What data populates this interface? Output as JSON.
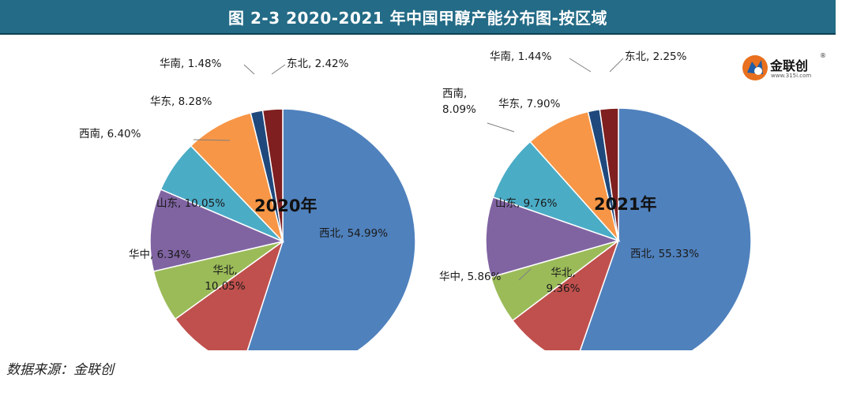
{
  "title": "图 2-3 2020-2021 年中国甲醇产能分布图-按区域",
  "source": "数据来源：金联创",
  "logo": {
    "name": "金联创",
    "url": "www.315i.com",
    "reg": "®"
  },
  "chart_data": [
    {
      "type": "pie",
      "center_label": "2020年",
      "slices": [
        {
          "name": "西北",
          "value": 54.99,
          "label_lines": [
            "西北, 54.99%"
          ],
          "color": "#4f81bd"
        },
        {
          "name": "华北",
          "value": 10.05,
          "label_lines": [
            "华北,",
            "10.05%"
          ],
          "color": "#c0504d"
        },
        {
          "name": "华中",
          "value": 6.34,
          "label_lines": [
            "华中, 6.34%"
          ],
          "color": "#9bbb59"
        },
        {
          "name": "山东",
          "value": 10.05,
          "label_lines": [
            "山东, 10.05%"
          ],
          "color": "#8064a2"
        },
        {
          "name": "西南",
          "value": 6.4,
          "label_lines": [
            "西南, 6.40%"
          ],
          "color": "#4bacc6"
        },
        {
          "name": "华东",
          "value": 8.28,
          "label_lines": [
            "华东, 8.28%"
          ],
          "color": "#f79646"
        },
        {
          "name": "华南",
          "value": 1.48,
          "label_lines": [
            "华南, 1.48%"
          ],
          "color": "#1f497d"
        },
        {
          "name": "东北",
          "value": 2.42,
          "label_lines": [
            "东北, 2.42%"
          ],
          "color": "#7f1f1f"
        }
      ]
    },
    {
      "type": "pie",
      "center_label": "2021年",
      "slices": [
        {
          "name": "西北",
          "value": 55.33,
          "label_lines": [
            "西北, 55.33%"
          ],
          "color": "#4f81bd"
        },
        {
          "name": "华北",
          "value": 9.36,
          "label_lines": [
            "华北,",
            "9.36%"
          ],
          "color": "#c0504d"
        },
        {
          "name": "华中",
          "value": 5.86,
          "label_lines": [
            "华中, 5.86%"
          ],
          "color": "#9bbb59"
        },
        {
          "name": "山东",
          "value": 9.76,
          "label_lines": [
            "山东, 9.76%"
          ],
          "color": "#8064a2"
        },
        {
          "name": "西南",
          "value": 8.09,
          "label_lines": [
            "西南,",
            "8.09%"
          ],
          "color": "#4bacc6"
        },
        {
          "name": "华东",
          "value": 7.9,
          "label_lines": [
            "华东, 7.90%"
          ],
          "color": "#f79646"
        },
        {
          "name": "华南",
          "value": 1.44,
          "label_lines": [
            "华南, 1.44%"
          ],
          "color": "#1f497d"
        },
        {
          "name": "东北",
          "value": 2.25,
          "label_lines": [
            "东北, 2.25%"
          ],
          "color": "#7f1f1f"
        }
      ]
    }
  ]
}
